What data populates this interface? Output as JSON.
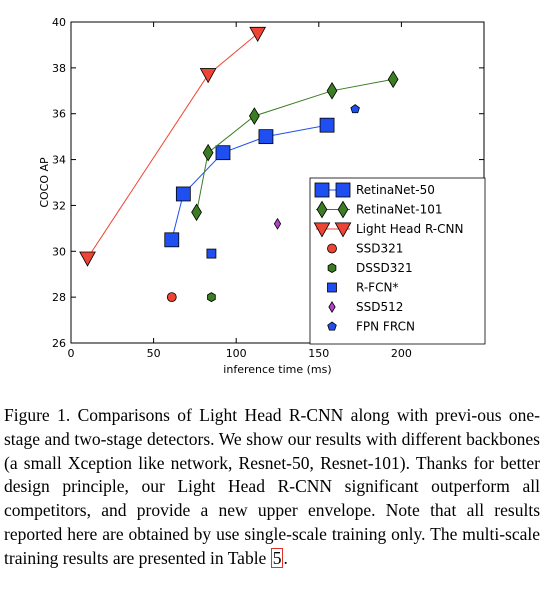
{
  "chart_data": {
    "type": "line",
    "xlabel": "inference time (ms)",
    "ylabel": "COCO AP",
    "xlim": [
      0,
      250
    ],
    "ylim": [
      26,
      40
    ],
    "xticks": [
      0,
      50,
      100,
      150,
      200
    ],
    "yticks": [
      26,
      28,
      30,
      32,
      34,
      36,
      38,
      40
    ],
    "grid": false,
    "legend_position": "lower-right",
    "series": [
      {
        "name": "RetinaNet-50",
        "marker": "square",
        "color": "#1f4ff0",
        "line": true,
        "points": [
          [
            61,
            30.5
          ],
          [
            68,
            32.5
          ],
          [
            92,
            34.3
          ],
          [
            118,
            35.0
          ],
          [
            155,
            35.5
          ]
        ]
      },
      {
        "name": "RetinaNet-101",
        "marker": "diamond",
        "color": "#3a7d22",
        "line": true,
        "points": [
          [
            76,
            31.7
          ],
          [
            83,
            34.3
          ],
          [
            111,
            35.9
          ],
          [
            158,
            37.0
          ],
          [
            195,
            37.5
          ]
        ]
      },
      {
        "name": "Light Head R-CNN",
        "marker": "triangle-down",
        "color": "#ee4433",
        "line": true,
        "points": [
          [
            10,
            29.7
          ],
          [
            83,
            37.7
          ],
          [
            113,
            39.5
          ]
        ]
      },
      {
        "name": "SSD321",
        "marker": "circle",
        "color": "#ee4433",
        "line": false,
        "points": [
          [
            61,
            28.0
          ]
        ]
      },
      {
        "name": "DSSD321",
        "marker": "hexagon",
        "color": "#3a7d22",
        "line": false,
        "points": [
          [
            85,
            28.0
          ]
        ]
      },
      {
        "name": "R-FCN*",
        "marker": "square",
        "color": "#1f4ff0",
        "line": false,
        "points": [
          [
            85,
            29.9
          ]
        ]
      },
      {
        "name": "SSD512",
        "marker": "diamond",
        "color": "#b63ecc",
        "line": false,
        "points": [
          [
            125,
            31.2
          ]
        ]
      },
      {
        "name": "FPN FRCN",
        "marker": "pentagon",
        "color": "#1f4ff0",
        "line": false,
        "points": [
          [
            172,
            36.2
          ]
        ]
      }
    ]
  },
  "caption": {
    "text": "Figure 1. Comparisons of Light Head R-CNN along with previ-ous one-stage and two-stage detectors. We show our results with different backbones (a small Xception like network, Resnet-50, Resnet-101). Thanks for better design principle, our Light Head R-CNN significant outperform all competitors, and provide a new upper envelope. Note that all results reported here are obtained by use single-scale training only. The multi-scale training results are presented in Table ",
    "ref": "5",
    "end": "."
  }
}
